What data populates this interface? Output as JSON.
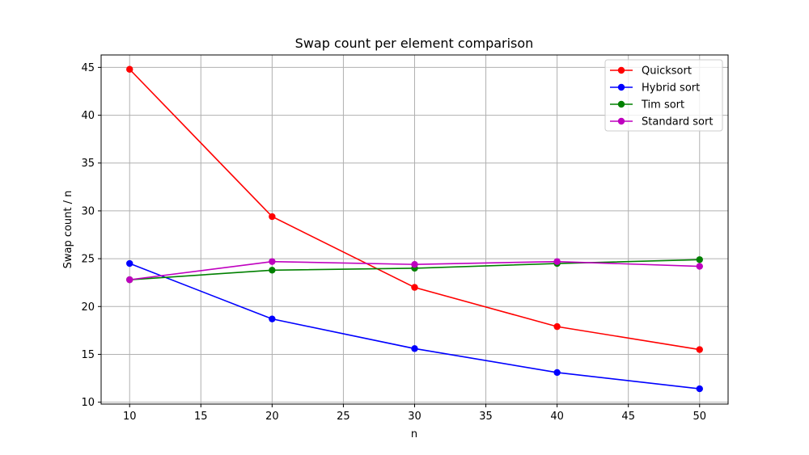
{
  "chart_data": {
    "type": "line",
    "title": "Swap count per element comparison",
    "xlabel": "n",
    "ylabel": "Swap count / n",
    "x": [
      10,
      20,
      30,
      40,
      50
    ],
    "xlim": [
      8,
      52
    ],
    "ylim": [
      9.8,
      46.3
    ],
    "xticks": [
      10,
      15,
      20,
      25,
      30,
      35,
      40,
      45,
      50
    ],
    "yticks": [
      10,
      15,
      20,
      25,
      30,
      35,
      40,
      45
    ],
    "grid": true,
    "legend_position": "top-right",
    "series": [
      {
        "name": "Quicksort",
        "color": "#ff0000",
        "values": [
          44.8,
          29.4,
          22.0,
          17.9,
          15.5
        ]
      },
      {
        "name": "Hybrid sort",
        "color": "#0000ff",
        "values": [
          24.5,
          18.7,
          15.6,
          13.1,
          11.4
        ]
      },
      {
        "name": "Tim sort",
        "color": "#008000",
        "values": [
          22.8,
          23.8,
          24.0,
          24.5,
          24.9
        ]
      },
      {
        "name": "Standard sort",
        "color": "#bf00bf",
        "values": [
          22.8,
          24.7,
          24.4,
          24.7,
          24.2
        ]
      }
    ]
  }
}
